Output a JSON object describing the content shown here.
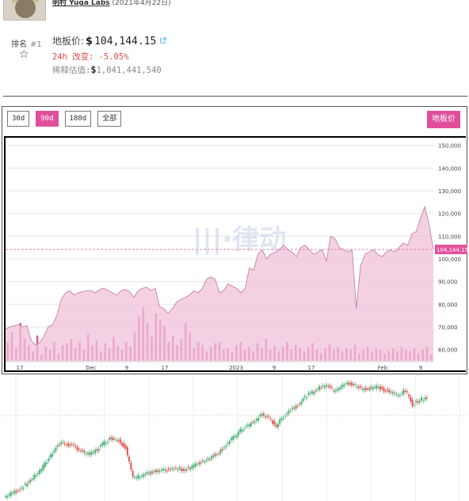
{
  "header": {
    "creator_name": "明村 Yuga Labs",
    "created_date": "(2021年4月22日)"
  },
  "stats": {
    "rank_label": "排名",
    "rank_value": "#1",
    "floor_label": "地板价:",
    "floor_currency": "$",
    "floor_value": "104,144.15",
    "change_label": "24h 改变:",
    "change_value": "-5.05%",
    "diluted_label": "稀释估值:",
    "diluted_currency": "$",
    "diluted_value": "1,041,441,540"
  },
  "toolbar": {
    "ranges": [
      "30d",
      "90d",
      "180d",
      "全部"
    ],
    "active_range": "90d",
    "metric_button": "地板价"
  },
  "icons": {
    "star": "star-outline-icon",
    "external_link": "external-link-icon",
    "watermark": "watermark-logo-icon"
  },
  "colors": {
    "accent": "#e14f9b",
    "area_fill": "#f0c2d8",
    "volume_bar": "#d4488e",
    "negative": "#e24b4b",
    "candle_up": "#4caf7a",
    "candle_down": "#e05252"
  },
  "chart_data": [
    {
      "type": "area",
      "title": "",
      "x_ticks": [
        "17",
        "Dec",
        "9",
        "17",
        "2023",
        "9",
        "17",
        "Feb",
        "9"
      ],
      "y_ticks": [
        "150,000",
        "140,000",
        "130,000",
        "120,000",
        "110,000",
        "100,000",
        "90,000",
        "80,000",
        "70,000",
        "60,000"
      ],
      "ylim": [
        55000,
        152000
      ],
      "current_value_label": "104,144.15",
      "current_value": 104144.15,
      "grid": true,
      "series": [
        {
          "type": "area",
          "values": [
            69000,
            70000,
            70500,
            71000,
            70000,
            70500,
            64000,
            62000,
            63000,
            66000,
            70000,
            71000,
            75000,
            82000,
            85000,
            86000,
            84000,
            85000,
            85500,
            86000,
            86000,
            85000,
            86500,
            87000,
            86000,
            85000,
            84000,
            86000,
            86500,
            85500,
            83000,
            86000,
            87000,
            87500,
            86000,
            87000,
            79000,
            78000,
            76000,
            78000,
            81000,
            82000,
            83000,
            84000,
            86000,
            85000,
            87000,
            91000,
            92000,
            91000,
            85000,
            86000,
            89000,
            88000,
            87000,
            85000,
            87000,
            96000,
            95000,
            102000,
            104000,
            100000,
            102000,
            103000,
            104000,
            106000,
            104000,
            103000,
            101000,
            105000,
            106000,
            104000,
            102000,
            103000,
            104000,
            99000,
            110000,
            109000,
            105000,
            104000,
            103000,
            104000,
            78000,
            97000,
            102000,
            103000,
            104000,
            102000,
            101000,
            103000,
            104000,
            103000,
            105000,
            107000,
            106000,
            111000,
            112000,
            118000,
            123000,
            115000,
            104144
          ]
        },
        {
          "type": "bar",
          "name": "",
          "values": [
            30,
            45,
            20,
            60,
            35,
            25,
            15,
            40,
            10,
            22,
            18,
            30,
            12,
            25,
            28,
            35,
            20,
            30,
            18,
            42,
            25,
            32,
            15,
            28,
            20,
            38,
            24,
            18,
            30,
            22,
            45,
            70,
            85,
            60,
            40,
            75,
            65,
            55,
            30,
            40,
            25,
            35,
            60,
            45,
            20,
            30,
            25,
            15,
            22,
            28,
            30,
            18,
            20,
            14,
            25,
            30,
            18,
            22,
            15,
            28,
            20,
            35,
            18,
            24,
            15,
            22,
            30,
            18,
            25,
            20,
            15,
            22,
            28,
            18,
            12,
            20,
            26,
            18,
            22,
            15,
            20,
            18,
            25,
            12,
            18,
            22,
            15,
            20,
            18,
            12,
            16,
            20,
            15,
            22,
            18,
            15,
            20,
            12,
            18,
            22,
            10
          ]
        }
      ]
    },
    {
      "type": "line",
      "title": "",
      "ylim": [
        0,
        1
      ],
      "series": [
        {
          "values": [
            0.02,
            0.05,
            0.08,
            0.12,
            0.18,
            0.24,
            0.32,
            0.42,
            0.48,
            0.46,
            0.44,
            0.4,
            0.38,
            0.42,
            0.48,
            0.52,
            0.5,
            0.44,
            0.18,
            0.2,
            0.22,
            0.23,
            0.24,
            0.25,
            0.26,
            0.25,
            0.27,
            0.3,
            0.33,
            0.36,
            0.4,
            0.46,
            0.52,
            0.58,
            0.62,
            0.66,
            0.72,
            0.68,
            0.62,
            0.7,
            0.76,
            0.8,
            0.86,
            0.9,
            0.94,
            0.97,
            0.92,
            0.95,
            0.98,
            0.96,
            0.93,
            0.94,
            0.95,
            0.92,
            0.9,
            0.88,
            0.92,
            0.8,
            0.84,
            0.86
          ]
        }
      ]
    }
  ]
}
